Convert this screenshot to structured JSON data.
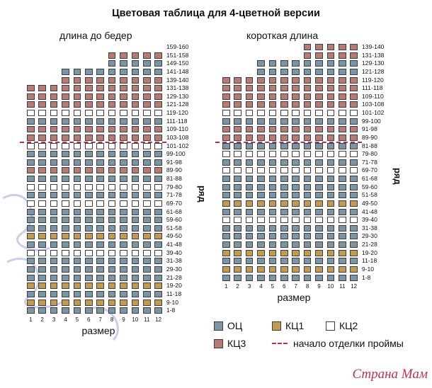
{
  "title": "Цветовая таблица для 4-цветной версии",
  "colors": {
    "ОЦ": "#7a95a3",
    "КЦ1": "#c39a4e",
    "КЦ2": "#ffffff",
    "КЦ3": "#b87a72",
    "dash": "#b5304a"
  },
  "left_chart": {
    "subtitle": "длина до бедер",
    "x_axis_label": "размер",
    "y_axis_label": "ряд",
    "size_labels": [
      "1",
      "2",
      "3",
      "4",
      "5",
      "6",
      "7",
      "8",
      "9",
      "10",
      "11",
      "12"
    ],
    "row_labels": [
      "159-160",
      "151-158",
      "149-150",
      "141-148",
      "139-140",
      "131-138",
      "129-130",
      "121-128",
      "119-120",
      "111-118",
      "109-110",
      "103-108",
      "101-102",
      "99-100",
      "91-98",
      "89-90",
      "81-88",
      "79-80",
      "71-78",
      "69-70",
      "61-68",
      "59-60",
      "51-58",
      "49-50",
      "41-48",
      "39-40",
      "31-38",
      "29-30",
      "21-28",
      "19-20",
      "11-18",
      "9-10",
      "1-8"
    ],
    "row_colors": [
      "КЦ3",
      "КЦ3",
      "ОЦ",
      "ОЦ",
      "КЦ3",
      "КЦ3",
      "КЦ3",
      "КЦ3",
      "КЦ2",
      "ОЦ",
      "КЦ3",
      "КЦ3",
      "КЦ2",
      "ОЦ",
      "ОЦ",
      "КЦ3",
      "ОЦ",
      "КЦ2",
      "ОЦ",
      "КЦ2",
      "ОЦ",
      "ОЦ",
      "ОЦ",
      "КЦ1",
      "ОЦ",
      "КЦ2",
      "ОЦ",
      "ОЦ",
      "ОЦ",
      "КЦ1",
      "ОЦ",
      "КЦ1",
      "ОЦ"
    ],
    "top_row_by_size": [
      5,
      5,
      5,
      3,
      3,
      3,
      3,
      1,
      1,
      1,
      1,
      1
    ],
    "dashed_line_after_row": "103-108"
  },
  "right_chart": {
    "subtitle": "короткая длина",
    "x_axis_label": "размер",
    "y_axis_label": "ряд",
    "size_labels": [
      "1",
      "2",
      "3",
      "4",
      "5",
      "6",
      "7",
      "8",
      "9",
      "10",
      "11",
      "12"
    ],
    "row_labels": [
      "139-140",
      "131-138",
      "129-130",
      "121-128",
      "119-120",
      "111-118",
      "109-110",
      "103-108",
      "101-102",
      "99-100",
      "91-98",
      "89-90",
      "81-88",
      "79-80",
      "71-78",
      "69-70",
      "61-68",
      "59-60",
      "51-58",
      "49-50",
      "41-48",
      "39-40",
      "31-38",
      "29-30",
      "21-28",
      "19-20",
      "11-18",
      "9-10",
      "1-8"
    ],
    "row_colors": [
      "КЦ3",
      "КЦ3",
      "ОЦ",
      "ОЦ",
      "КЦ3",
      "КЦ3",
      "КЦ3",
      "КЦ3",
      "КЦ2",
      "ОЦ",
      "КЦ3",
      "КЦ3",
      "ОЦ",
      "КЦ2",
      "ОЦ",
      "КЦ2",
      "ОЦ",
      "ОЦ",
      "ОЦ",
      "КЦ1",
      "ОЦ",
      "КЦ2",
      "ОЦ",
      "ОЦ",
      "ОЦ",
      "КЦ1",
      "ОЦ",
      "КЦ1",
      "ОЦ"
    ],
    "top_row_by_size": [
      4,
      4,
      4,
      2,
      2,
      2,
      2,
      0,
      0,
      0,
      0,
      0
    ],
    "dashed_line_after_row": "89-90"
  },
  "legend": {
    "items": [
      {
        "key": "ОЦ",
        "label": "ОЦ"
      },
      {
        "key": "КЦ1",
        "label": "КЦ1"
      },
      {
        "key": "КЦ2",
        "label": "КЦ2"
      },
      {
        "key": "КЦ3",
        "label": "КЦ3"
      }
    ],
    "dash_label": "начало отделки проймы"
  },
  "watermark": "Страна Мам"
}
